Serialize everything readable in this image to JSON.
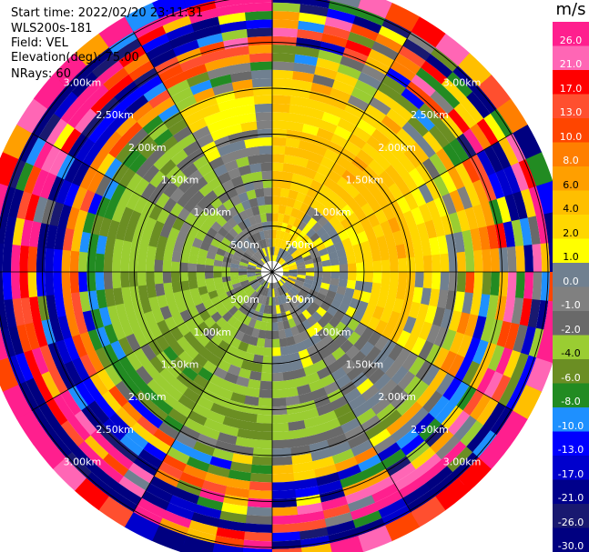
{
  "info": {
    "start_time": "Start time: 2022/02/20 23:11:31",
    "instrument": "WLS200s-181",
    "field": "Field: VEL",
    "elevation": "Elevation(deg): 75.00",
    "nrays": "NRays: 60"
  },
  "colorbar": {
    "title": "m/s",
    "labels": [
      "26.0",
      "21.0",
      "17.0",
      "13.0",
      "10.0",
      "8.0",
      "6.0",
      "4.0",
      "2.0",
      "1.0",
      "0.0",
      "-1.0",
      "-2.0",
      "-4.0",
      "-6.0",
      "-8.0",
      "-10.0",
      "-13.0",
      "-17.0",
      "-21.0",
      "-26.0",
      "-30.0"
    ],
    "colors": [
      "#ff1f8e",
      "#ff66b5",
      "#ff0000",
      "#ff4f2f",
      "#ff4500",
      "#ff7f00",
      "#ff9f00",
      "#ffbf00",
      "#ffd700",
      "#ffff00",
      "#708090",
      "#808080",
      "#696969",
      "#9acd32",
      "#6b8e23",
      "#228b22",
      "#1e90ff",
      "#0000ff",
      "#0000cd",
      "#00008b",
      "#191970",
      "#000080"
    ]
  },
  "chart_data": {
    "type": "heatmap",
    "projection": "polar PPI",
    "field": "VEL",
    "units": "m/s",
    "n_rays": 60,
    "range_rings_km": [
      0.5,
      1.0,
      1.5,
      2.0,
      2.5,
      3.0
    ],
    "ring_labels": [
      "500m",
      "1.00km",
      "1.50km",
      "2.00km",
      "2.50km",
      "3.00km"
    ],
    "max_range_km": 3.3,
    "velocity_range": [
      -30,
      26
    ],
    "sectors": [
      {
        "azimuth_deg": [
          0,
          30
        ],
        "profile_ms": [
          1,
          3,
          4,
          4,
          4,
          4,
          3,
          4,
          1,
          -3,
          10,
          -15,
          17
        ]
      },
      {
        "azimuth_deg": [
          30,
          60
        ],
        "profile_ms": [
          1,
          2,
          0,
          3,
          4,
          5,
          4,
          3,
          1,
          -6,
          12,
          -18,
          21
        ]
      },
      {
        "azimuth_deg": [
          60,
          90
        ],
        "profile_ms": [
          2,
          0,
          1,
          3,
          4,
          5,
          3,
          1,
          2,
          8,
          -12,
          17,
          -22
        ]
      },
      {
        "azimuth_deg": [
          90,
          120
        ],
        "profile_ms": [
          1,
          0,
          0,
          1,
          3,
          4,
          2,
          -1,
          6,
          -9,
          13,
          -20,
          24
        ]
      },
      {
        "azimuth_deg": [
          120,
          150
        ],
        "profile_ms": [
          0,
          0,
          0,
          -1,
          -1,
          0,
          0,
          -2,
          4,
          -10,
          15,
          -22,
          26
        ]
      },
      {
        "azimuth_deg": [
          150,
          180
        ],
        "profile_ms": [
          0,
          0,
          -1,
          0,
          -2,
          -2,
          -3,
          -1,
          3,
          -12,
          18,
          -25,
          21
        ]
      },
      {
        "azimuth_deg": [
          180,
          210
        ],
        "profile_ms": [
          0,
          -1,
          -2,
          -3,
          -2,
          -3,
          -4,
          -2,
          -6,
          10,
          -17,
          23,
          -28
        ]
      },
      {
        "azimuth_deg": [
          210,
          240
        ],
        "profile_ms": [
          -1,
          -2,
          -3,
          -3,
          -4,
          -5,
          -3,
          -6,
          9,
          -14,
          20,
          -26,
          17
        ]
      },
      {
        "azimuth_deg": [
          240,
          270
        ],
        "profile_ms": [
          -1,
          -2,
          -3,
          -3,
          -3,
          -4,
          -3,
          -8,
          11,
          -15,
          22,
          -28,
          19
        ]
      },
      {
        "azimuth_deg": [
          270,
          300
        ],
        "profile_ms": [
          0,
          -1,
          -2,
          -2,
          -3,
          -3,
          -4,
          -7,
          10,
          -16,
          19,
          -24,
          26
        ]
      },
      {
        "azimuth_deg": [
          300,
          330
        ],
        "profile_ms": [
          0,
          -1,
          -1,
          -2,
          -2,
          -2,
          -3,
          -5,
          8,
          -13,
          21,
          -27,
          23
        ]
      },
      {
        "azimuth_deg": [
          330,
          360
        ],
        "profile_ms": [
          0,
          0,
          -1,
          -1,
          -1,
          0,
          1,
          3,
          -5,
          12,
          -18,
          25,
          -21
        ]
      }
    ]
  }
}
